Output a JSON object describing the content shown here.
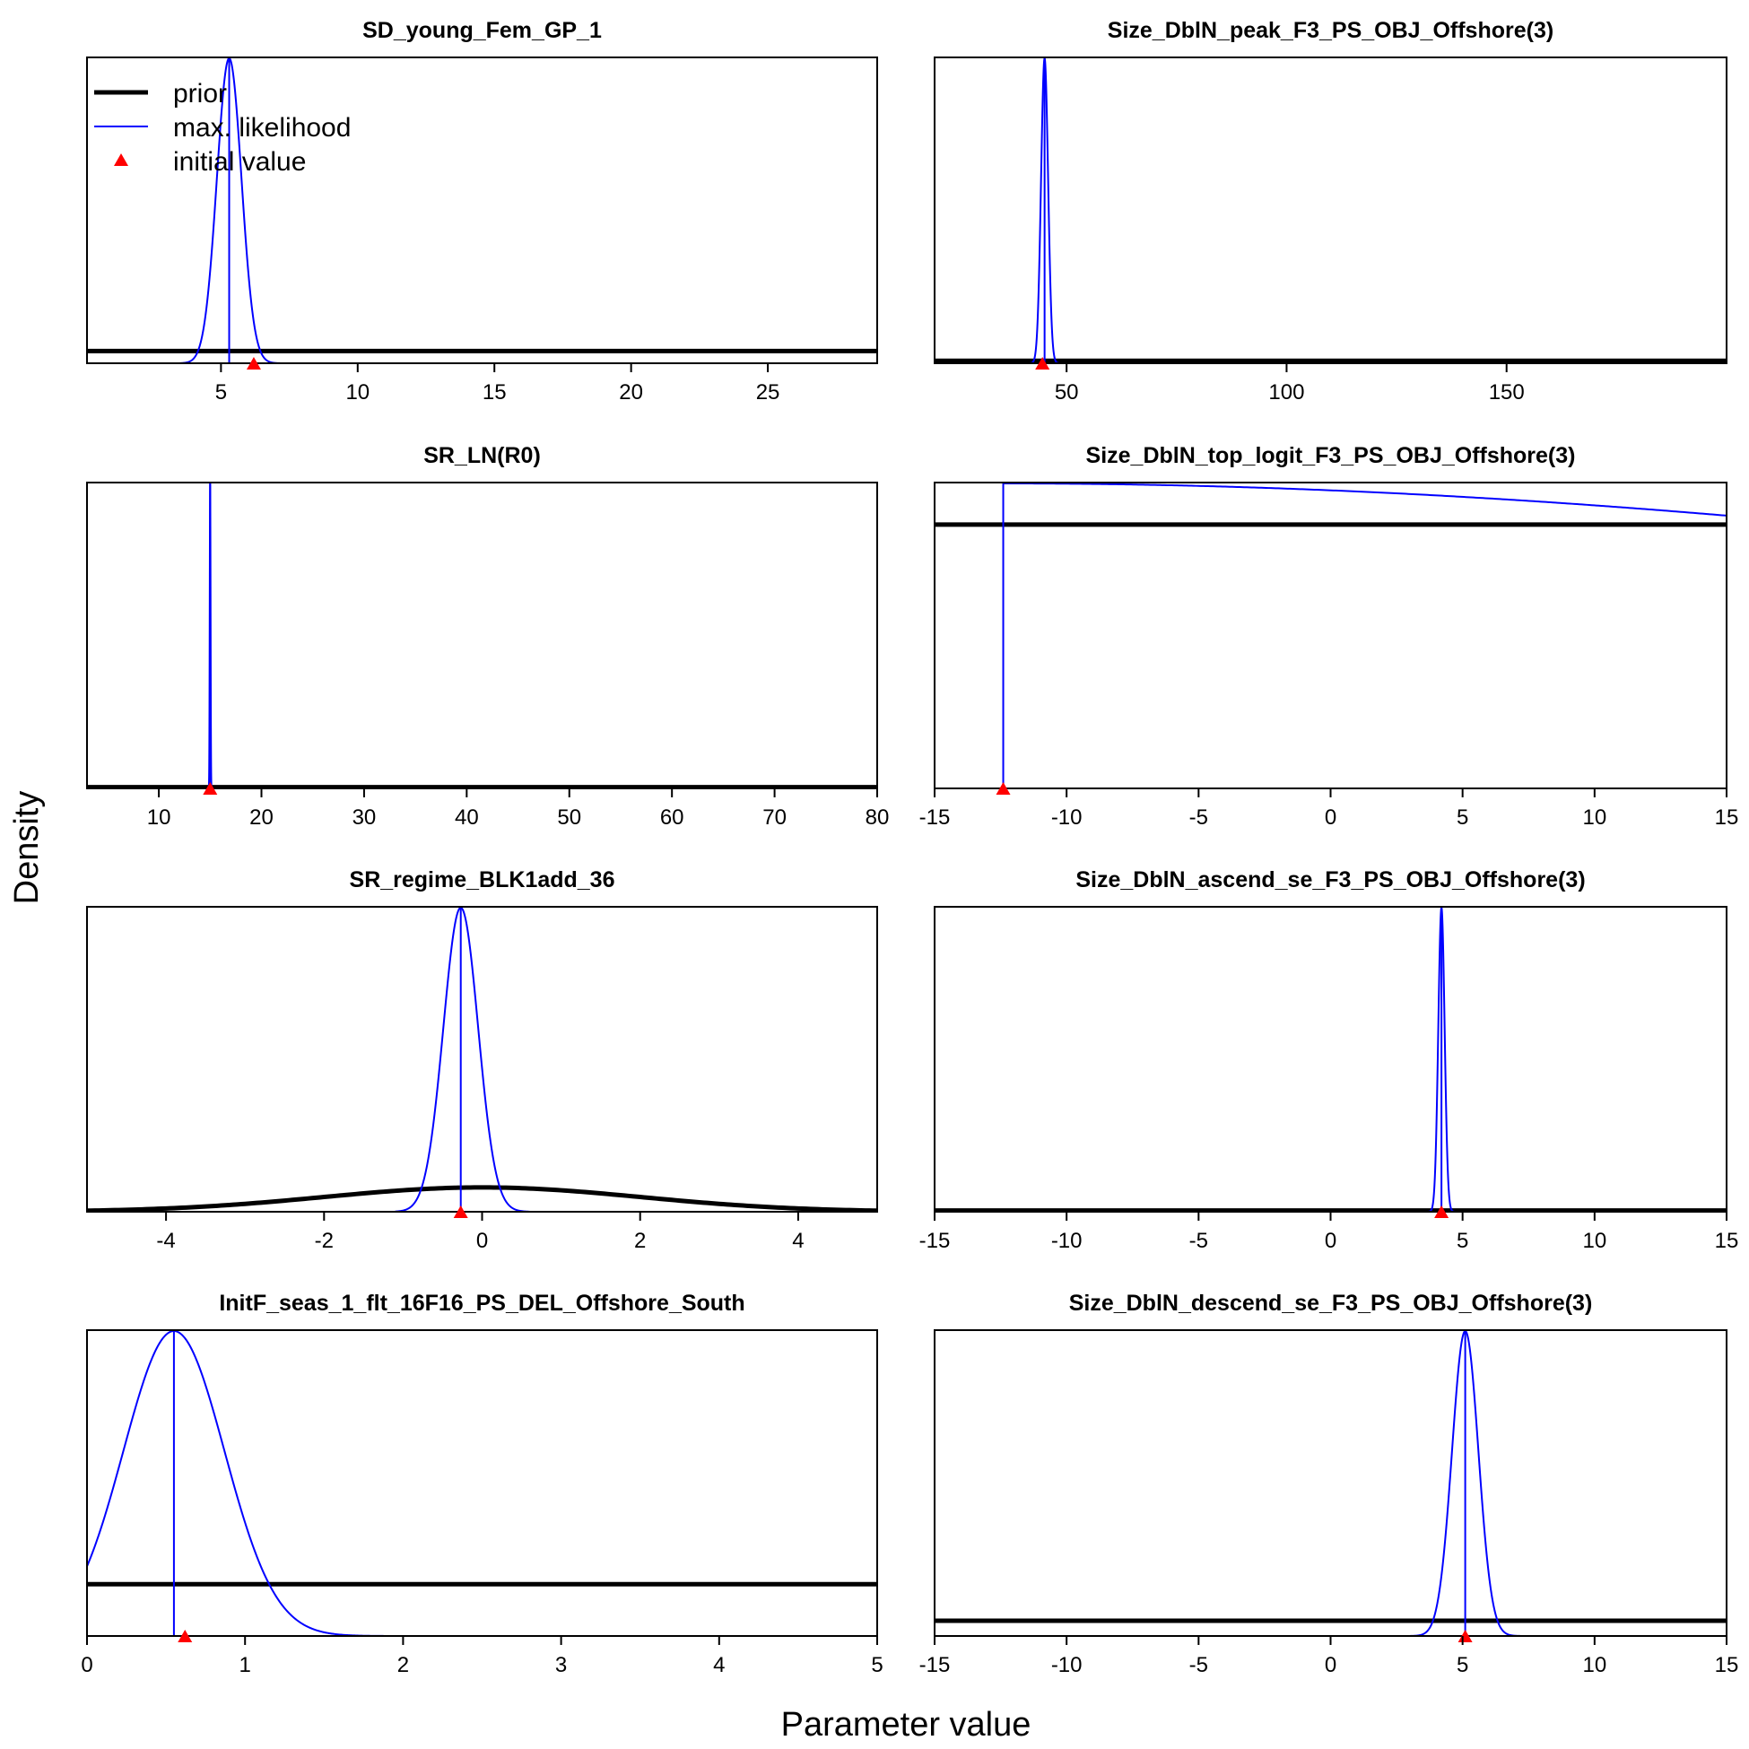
{
  "figure": {
    "ylabel": "Density",
    "xlabel": "Parameter value",
    "legend": {
      "placement": "top-left of first panel",
      "items": [
        {
          "label": "prior",
          "kind": "line",
          "color": "#000000"
        },
        {
          "label": "max. likelihood",
          "kind": "line",
          "color": "#0000ff"
        },
        {
          "label": "initial value",
          "kind": "triangle",
          "color": "#ff0000"
        }
      ]
    }
  },
  "colors": {
    "prior": "#000000",
    "likelihood": "#0000ff",
    "initial": "#ff0000"
  },
  "chart_data": [
    {
      "type": "line",
      "title": "SD_young_Fem_GP_1",
      "xlim": [
        0.1,
        29
      ],
      "ticks": [
        5,
        10,
        15,
        20,
        25
      ],
      "prior": {
        "type": "uniform",
        "level": 0.04
      },
      "likelihood": {
        "type": "normal",
        "mean": 5.3,
        "sd": 0.45,
        "range": [
          3.5,
          7.5
        ]
      },
      "mle": 5.3,
      "initial": 6.2
    },
    {
      "type": "line",
      "title": "Size_DblN_peak_F3_PS_OBJ_Offshore(3)",
      "xlim": [
        20,
        200
      ],
      "ticks": [
        50,
        100,
        150
      ],
      "prior": {
        "type": "uniform",
        "level": 0.008
      },
      "likelihood": {
        "type": "normal",
        "mean": 45,
        "sd": 0.8,
        "range": [
          41,
          49
        ]
      },
      "mle": 45,
      "initial": 44.5
    },
    {
      "type": "line",
      "title": "SR_LN(R0)",
      "xlim": [
        3,
        80
      ],
      "ticks": [
        10,
        20,
        30,
        40,
        50,
        60,
        70,
        80
      ],
      "prior": {
        "type": "uniform",
        "level": 0.004
      },
      "likelihood": {
        "type": "normal",
        "mean": 15,
        "sd": 0.04,
        "range": [
          14.7,
          15.3
        ]
      },
      "mle": 15,
      "initial": 15
    },
    {
      "type": "line",
      "title": "Size_DblN_top_logit_F3_PS_OBJ_Offshore(3)",
      "xlim": [
        -15,
        15
      ],
      "ticks": [
        -15,
        -10,
        -5,
        0,
        5,
        10,
        15
      ],
      "prior": {
        "type": "uniform",
        "level": 0.865
      },
      "likelihood": {
        "type": "halfnormal",
        "mean": -12.4,
        "sd": 58,
        "range": [
          -12.4,
          15
        ]
      },
      "mle": -12.4,
      "initial": -12.4
    },
    {
      "type": "line",
      "title": "SR_regime_BLK1add_36",
      "xlim": [
        -5,
        5
      ],
      "ticks": [
        -4,
        -2,
        0,
        2,
        4
      ],
      "prior": {
        "type": "normal",
        "mean": 0,
        "sd": 2,
        "scale": 0.08
      },
      "likelihood": {
        "type": "normal",
        "mean": -0.27,
        "sd": 0.22,
        "range": [
          -1.1,
          0.6
        ]
      },
      "mle": -0.27,
      "initial": -0.27
    },
    {
      "type": "line",
      "title": "Size_DblN_ascend_se_F3_PS_OBJ_Offshore(3)",
      "xlim": [
        -15,
        15
      ],
      "ticks": [
        -15,
        -10,
        -5,
        0,
        5,
        10,
        15
      ],
      "prior": {
        "type": "uniform",
        "level": 0.004
      },
      "likelihood": {
        "type": "normal",
        "mean": 4.2,
        "sd": 0.12,
        "range": [
          3.5,
          5.0
        ]
      },
      "mle": 4.2,
      "initial": 4.2
    },
    {
      "type": "line",
      "title": "InitF_seas_1_flt_16F16_PS_DEL_Offshore_South",
      "xlim": [
        0,
        5
      ],
      "ticks": [
        0,
        1,
        2,
        3,
        4,
        5
      ],
      "prior": {
        "type": "uniform",
        "level": 0.17
      },
      "likelihood": {
        "type": "normal",
        "mean": 0.55,
        "sd": 0.32,
        "range": [
          0,
          2.0
        ]
      },
      "mle": 0.55,
      "initial": 0.62
    },
    {
      "type": "line",
      "title": "Size_DblN_descend_se_F3_PS_OBJ_Offshore(3)",
      "xlim": [
        -15,
        15
      ],
      "ticks": [
        -15,
        -10,
        -5,
        0,
        5,
        10,
        15
      ],
      "prior": {
        "type": "uniform",
        "level": 0.05
      },
      "likelihood": {
        "type": "normal",
        "mean": 5.1,
        "sd": 0.5,
        "range": [
          2.8,
          7.4
        ]
      },
      "mle": 5.1,
      "initial": 5.1
    }
  ]
}
